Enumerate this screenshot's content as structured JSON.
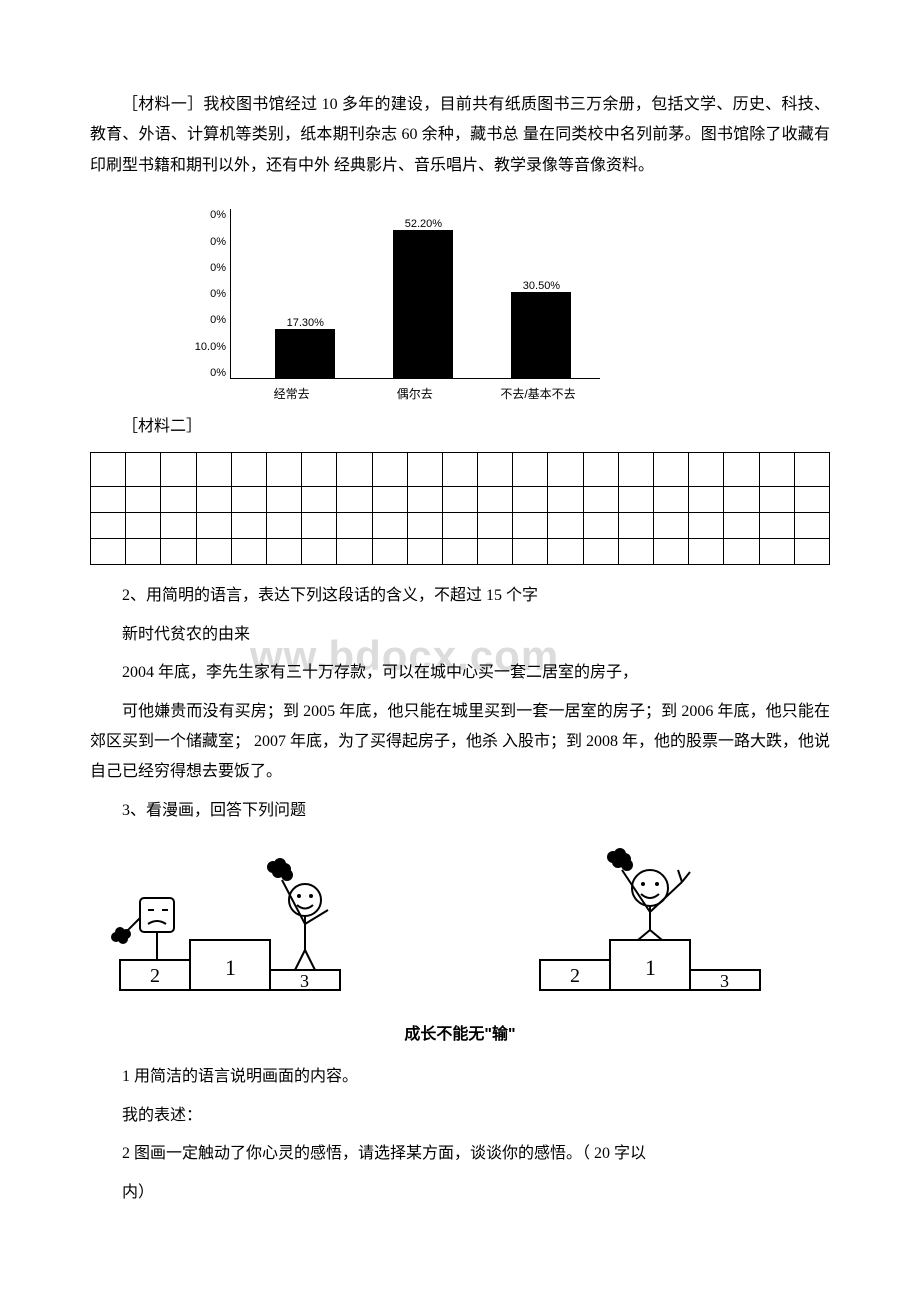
{
  "material1": {
    "text": "［材料一］我校图书馆经过 10 多年的建设，目前共有纸质图书三万余册，包括文学、历史、科技、教育、外语、计算机等类别，纸本期刊杂志 60 余种，藏书总 量在同类校中名列前茅。图书馆除了收藏有印刷型书籍和期刊以外，还有中外 经典影片、音乐唱片、教学录像等音像资料。"
  },
  "chart": {
    "type": "bar",
    "y_ticks": [
      "0%",
      "0%",
      "0%",
      "0%",
      "0%",
      "10.0%",
      "0%"
    ],
    "y_max": 60,
    "categories": [
      "经常去",
      "偶尔去",
      "不去/基本不去"
    ],
    "values": [
      17.3,
      52.2,
      30.5
    ],
    "value_labels": [
      "17.30%",
      "52.20%",
      "30.50%"
    ],
    "bar_color": "#000000",
    "bg_color": "#ffffff",
    "bar_positions_pct": [
      12,
      44,
      76
    ]
  },
  "material2_label": "［材料二］",
  "empty_table": {
    "rows": 4,
    "cols": 21
  },
  "q2": {
    "prompt": "2、用简明的语言，表达下列这段话的含义，不超过 15 个字",
    "subtitle": "新时代贫农的由来",
    "line1": "2004 年底，李先生家有三十万存款，可以在城中心买一套二居室的房子，",
    "para": "可他嫌贵而没有买房；到 2005 年底，他只能在城里买到一套一居室的房子；到 2006 年底，他只能在郊区买到一个储藏室； 2007 年底，为了买得起房子，他杀 入股市；到 2008 年，他的股票一路大跌，他说自己已经穷得想去要饭了。"
  },
  "q3": {
    "prompt": "3、看漫画，回答下列问题",
    "title": "成长不能无\"输\"",
    "sub1": "1 用简洁的语言说明画面的内容。",
    "sub1_line": "我的表述：",
    "sub2": "2 图画一定触动了你心灵的感悟，请选择某方面，谈谈你的感悟。（ 20 字以",
    "sub2_cont": "内）"
  },
  "watermark": "ww.bdocx.com",
  "comic": {
    "podium_labels": [
      "2",
      "1",
      "3"
    ]
  }
}
